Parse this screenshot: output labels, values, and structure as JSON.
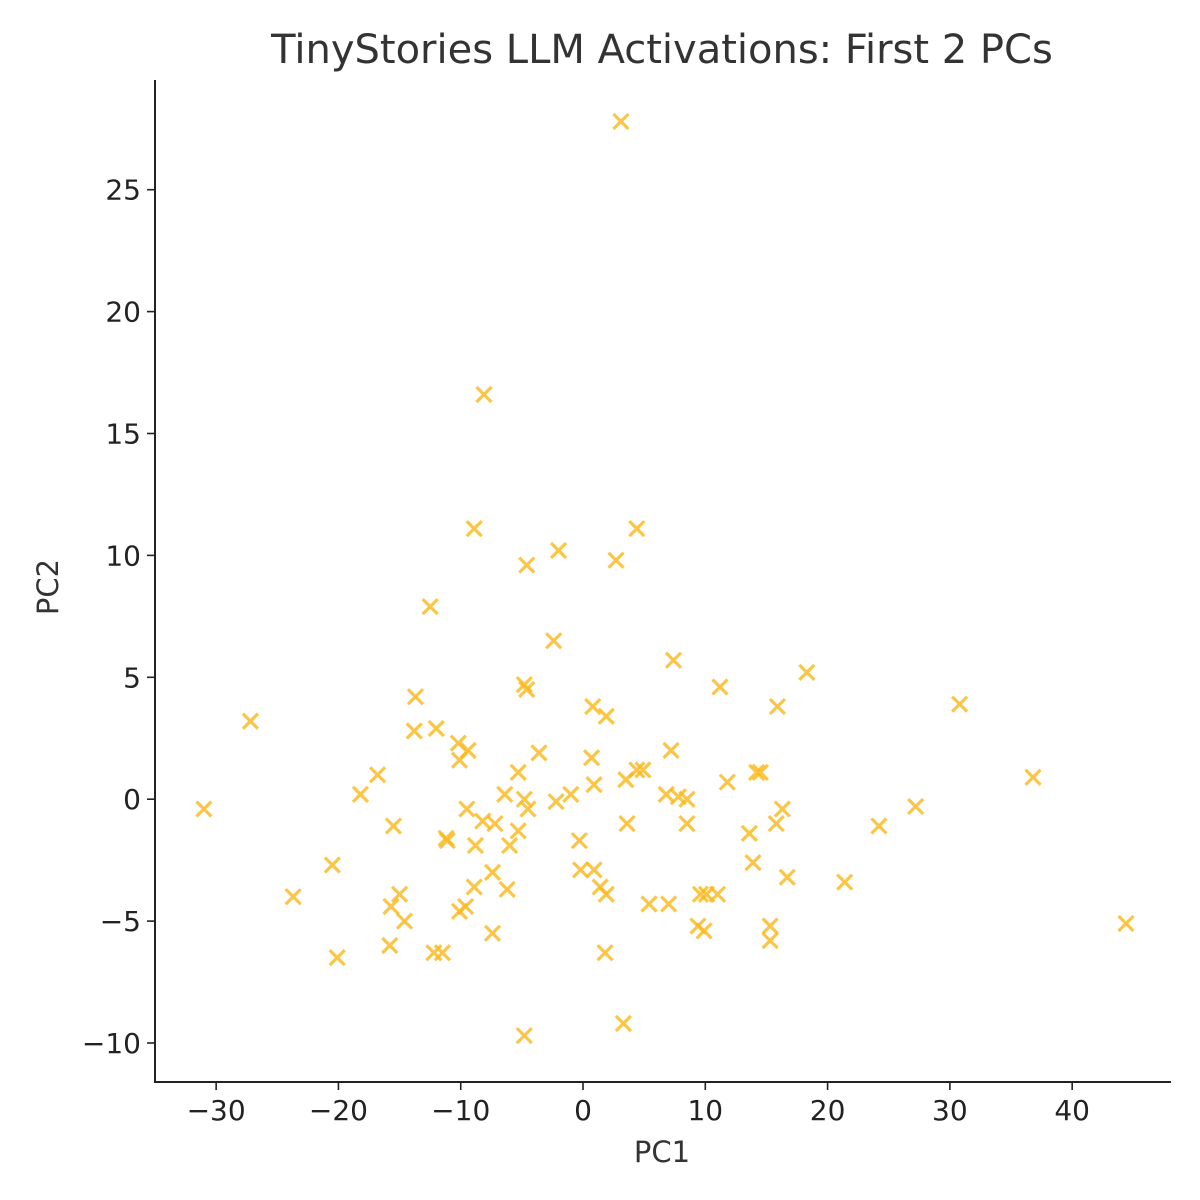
{
  "chart_data": {
    "type": "scatter",
    "title": "TinyStories LLM Activations: First 2 PCs",
    "xlabel": "PC1",
    "ylabel": "PC2",
    "xlim": [
      -35,
      48
    ],
    "ylim": [
      -11.6,
      29.5
    ],
    "xticks": [
      -30,
      -20,
      -10,
      0,
      10,
      20,
      30,
      40
    ],
    "yticks": [
      -10,
      -5,
      0,
      5,
      10,
      15,
      20,
      25
    ],
    "grid": false,
    "marker": "x",
    "color": "#FBB81A",
    "series": [
      {
        "points": [
          [
            3.1,
            27.8
          ],
          [
            -8.1,
            16.6
          ],
          [
            -8.9,
            11.1
          ],
          [
            4.4,
            11.1
          ],
          [
            -2.0,
            10.2
          ],
          [
            2.7,
            9.8
          ],
          [
            -4.6,
            9.6
          ],
          [
            -12.5,
            7.9
          ],
          [
            -2.4,
            6.5
          ],
          [
            7.4,
            5.7
          ],
          [
            18.3,
            5.2
          ],
          [
            -4.8,
            4.7
          ],
          [
            -4.6,
            4.5
          ],
          [
            11.2,
            4.6
          ],
          [
            -13.7,
            4.2
          ],
          [
            30.8,
            3.9
          ],
          [
            0.8,
            3.8
          ],
          [
            15.9,
            3.8
          ],
          [
            1.9,
            3.4
          ],
          [
            -27.2,
            3.2
          ],
          [
            -12.0,
            2.9
          ],
          [
            -13.8,
            2.8
          ],
          [
            -10.2,
            2.3
          ],
          [
            -9.4,
            2.0
          ],
          [
            -10.1,
            1.6
          ],
          [
            -3.6,
            1.9
          ],
          [
            7.2,
            2.0
          ],
          [
            0.7,
            1.7
          ],
          [
            -16.8,
            1.0
          ],
          [
            -5.3,
            1.1
          ],
          [
            4.4,
            1.2
          ],
          [
            4.9,
            1.2
          ],
          [
            14.2,
            1.1
          ],
          [
            14.5,
            1.1
          ],
          [
            36.8,
            0.9
          ],
          [
            11.8,
            0.7
          ],
          [
            0.9,
            0.6
          ],
          [
            3.5,
            0.8
          ],
          [
            -18.2,
            0.2
          ],
          [
            -6.4,
            0.2
          ],
          [
            -1.0,
            0.2
          ],
          [
            6.8,
            0.2
          ],
          [
            7.8,
            0.1
          ],
          [
            8.5,
            0.0
          ],
          [
            -4.8,
            0.0
          ],
          [
            -2.2,
            -0.1
          ],
          [
            27.2,
            -0.3
          ],
          [
            -31.0,
            -0.4
          ],
          [
            -9.5,
            -0.4
          ],
          [
            -4.5,
            -0.4
          ],
          [
            16.3,
            -0.4
          ],
          [
            -8.2,
            -0.9
          ],
          [
            -7.2,
            -1.0
          ],
          [
            3.6,
            -1.0
          ],
          [
            8.5,
            -1.0
          ],
          [
            15.8,
            -1.0
          ],
          [
            -15.5,
            -1.1
          ],
          [
            24.2,
            -1.1
          ],
          [
            -5.3,
            -1.3
          ],
          [
            13.6,
            -1.4
          ],
          [
            -11.2,
            -1.6
          ],
          [
            -11.1,
            -1.7
          ],
          [
            -0.3,
            -1.7
          ],
          [
            -8.8,
            -1.9
          ],
          [
            -6.0,
            -1.9
          ],
          [
            -20.5,
            -2.7
          ],
          [
            13.9,
            -2.6
          ],
          [
            -7.4,
            -3.0
          ],
          [
            -0.2,
            -2.9
          ],
          [
            0.9,
            -2.9
          ],
          [
            16.7,
            -3.2
          ],
          [
            21.4,
            -3.4
          ],
          [
            -8.9,
            -3.6
          ],
          [
            1.4,
            -3.6
          ],
          [
            -6.2,
            -3.7
          ],
          [
            -23.7,
            -4.0
          ],
          [
            -15.0,
            -3.9
          ],
          [
            1.9,
            -3.9
          ],
          [
            9.6,
            -3.9
          ],
          [
            10.1,
            -3.9
          ],
          [
            11.0,
            -3.9
          ],
          [
            5.4,
            -4.3
          ],
          [
            7.0,
            -4.3
          ],
          [
            -15.7,
            -4.4
          ],
          [
            -9.6,
            -4.4
          ],
          [
            -10.1,
            -4.6
          ],
          [
            -14.6,
            -5.0
          ],
          [
            44.4,
            -5.1
          ],
          [
            9.4,
            -5.2
          ],
          [
            15.3,
            -5.2
          ],
          [
            9.9,
            -5.4
          ],
          [
            -7.4,
            -5.5
          ],
          [
            15.3,
            -5.8
          ],
          [
            -15.8,
            -6.0
          ],
          [
            -12.2,
            -6.3
          ],
          [
            -11.5,
            -6.3
          ],
          [
            1.8,
            -6.3
          ],
          [
            -20.1,
            -6.5
          ],
          [
            3.3,
            -9.2
          ],
          [
            -4.8,
            -9.7
          ]
        ]
      }
    ]
  }
}
